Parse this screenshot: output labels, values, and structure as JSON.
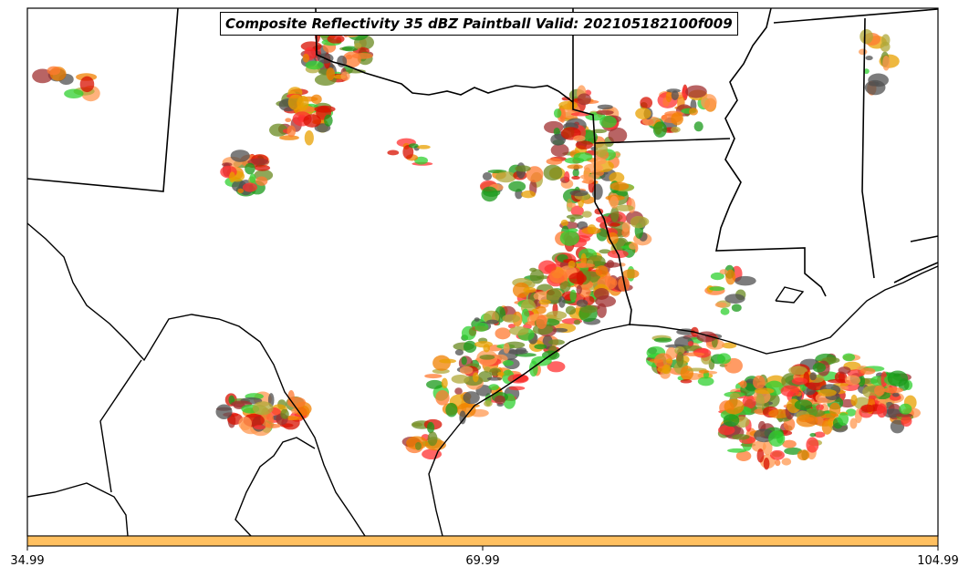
{
  "title": "Composite Reflectivity 35 dBZ Paintball Valid: 202105182100f009",
  "colorbar": {
    "color": "#ffc060",
    "ticks": [
      "34.99",
      "69.99",
      "104.99"
    ]
  },
  "member_colors": [
    "#ff3030",
    "#ff7a30",
    "#d81000",
    "#f08000",
    "#30d030",
    "#1a9a1a",
    "#505050",
    "#b0a838",
    "#a03030",
    "#e8a000",
    "#6a8a20",
    "#ff9850"
  ]
}
